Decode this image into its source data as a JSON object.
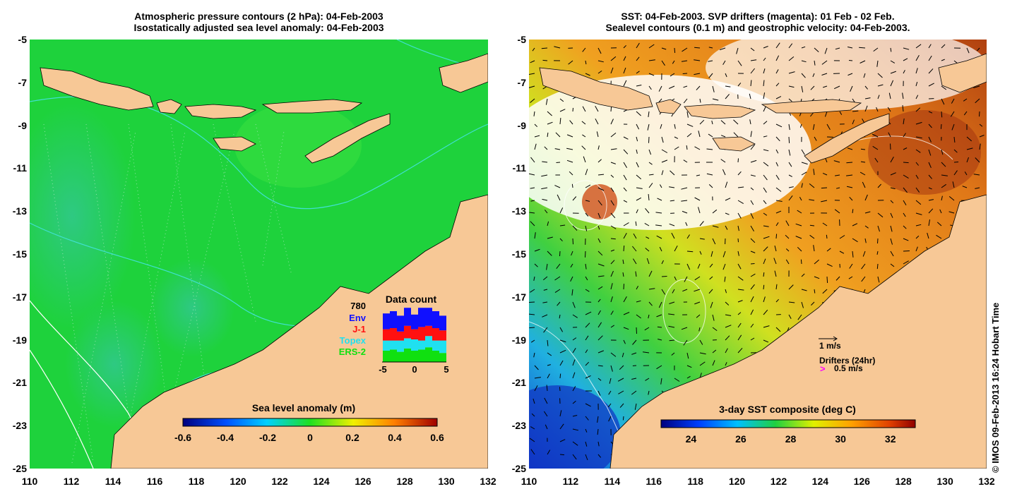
{
  "left_panel": {
    "title_line1": "Atmospheric pressure contours (2 hPa): 04-Feb-2003",
    "title_line2": "Isostatically adjusted sea level anomaly: 04-Feb-2003",
    "colorbar": {
      "label": "Sea level anomaly (m)",
      "ticks": [
        "-0.6",
        "-0.4",
        "-0.2",
        "0",
        "0.2",
        "0.4",
        "0.6"
      ]
    },
    "inset": {
      "title": "Data count",
      "max_label": "780",
      "legend": [
        {
          "name": "Env",
          "color": "#1010ff"
        },
        {
          "name": "J-1",
          "color": "#ff1010"
        },
        {
          "name": "Topex",
          "color": "#20e0f0"
        },
        {
          "name": "ERS-2",
          "color": "#10e010"
        }
      ],
      "x_ticks": [
        "-5",
        "0",
        "5"
      ],
      "bars": [
        {
          "ers2": 0.2,
          "topex": 0.18,
          "j1": 0.2,
          "env": 0.28
        },
        {
          "ers2": 0.22,
          "topex": 0.16,
          "j1": 0.22,
          "env": 0.3
        },
        {
          "ers2": 0.18,
          "topex": 0.2,
          "j1": 0.16,
          "env": 0.28
        },
        {
          "ers2": 0.24,
          "topex": 0.18,
          "j1": 0.22,
          "env": 0.32
        },
        {
          "ers2": 0.2,
          "topex": 0.2,
          "j1": 0.18,
          "env": 0.26
        },
        {
          "ers2": 0.22,
          "topex": 0.16,
          "j1": 0.24,
          "env": 0.34
        },
        {
          "ers2": 0.26,
          "topex": 0.2,
          "j1": 0.18,
          "env": 0.32
        },
        {
          "ers2": 0.2,
          "topex": 0.18,
          "j1": 0.22,
          "env": 0.3
        },
        {
          "ers2": 0.16,
          "topex": 0.22,
          "j1": 0.18,
          "env": 0.26
        }
      ]
    }
  },
  "right_panel": {
    "title_line1": "SST: 04-Feb-2003. SVP drifters (magenta): 01 Feb - 02 Feb.",
    "title_line2": "Sealevel contours (0.1 m) and geostrophic velocity: 04-Feb-2003.",
    "velocity_key": "1 m/s",
    "drifters_label": "Drifters (24hr)",
    "drifters_speed": "0.5 m/s",
    "drifter_marker": ">",
    "colorbar": {
      "label": "3-day SST composite (deg C)",
      "ticks": [
        "24",
        "26",
        "28",
        "30",
        "32"
      ]
    }
  },
  "axes": {
    "lat_labels": [
      "-5",
      "-7",
      "-9",
      "-11",
      "-13",
      "-15",
      "-17",
      "-19",
      "-21",
      "-23",
      "-25"
    ],
    "lon_labels": [
      "110",
      "112",
      "114",
      "116",
      "118",
      "120",
      "122",
      "124",
      "126",
      "128",
      "130",
      "132"
    ]
  },
  "copyright": "© IMOS 09-Feb-2013 16:24 Hobart Time",
  "colors": {
    "land": "#f7c896",
    "ocean_anomaly": "#1ed23c",
    "sst_warm": "#e8781e",
    "sst_cool": "#1e50d2"
  }
}
